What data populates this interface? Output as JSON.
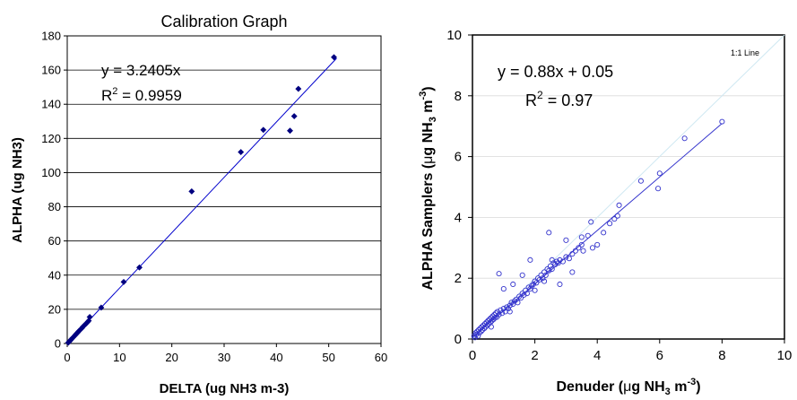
{
  "chart_data": [
    {
      "type": "scatter",
      "title": "Calibration Graph",
      "xlabel": "DELTA (ug NH3 m-3)",
      "ylabel": "ALPHA (ug NH3)",
      "xlim": [
        0,
        60
      ],
      "ylim": [
        0,
        180
      ],
      "xticks": [
        0,
        10,
        20,
        30,
        40,
        50,
        60
      ],
      "yticks": [
        0,
        20,
        40,
        60,
        80,
        100,
        120,
        140,
        160,
        180
      ],
      "marker_color": "#000080",
      "line_color": "#0000cc",
      "annotation": {
        "equation": "y = 3.2405x",
        "r2_prefix": "R",
        "r2_sup": "2",
        "r2_value": " = 0.9959"
      },
      "trendline": {
        "slope": 3.2405,
        "intercept": 0,
        "x_range": [
          0,
          51.5
        ]
      },
      "points": [
        [
          0.2,
          0.5
        ],
        [
          0.4,
          1.2
        ],
        [
          0.6,
          1.8
        ],
        [
          0.8,
          2.5
        ],
        [
          1.0,
          3.2
        ],
        [
          1.2,
          3.8
        ],
        [
          1.5,
          4.8
        ],
        [
          1.7,
          5.5
        ],
        [
          2.0,
          6.4
        ],
        [
          2.2,
          7.2
        ],
        [
          2.5,
          8.1
        ],
        [
          2.8,
          9.0
        ],
        [
          3.0,
          9.8
        ],
        [
          3.3,
          10.7
        ],
        [
          3.6,
          11.6
        ],
        [
          3.9,
          12.6
        ],
        [
          4.1,
          13.3
        ],
        [
          4.3,
          15.5
        ],
        [
          6.5,
          21.0
        ],
        [
          10.8,
          36.0
        ],
        [
          13.8,
          44.5
        ],
        [
          23.8,
          89.0
        ],
        [
          33.2,
          112.0
        ],
        [
          37.5,
          125.0
        ],
        [
          42.6,
          124.5
        ],
        [
          43.4,
          133.0
        ],
        [
          44.2,
          149.0
        ],
        [
          51.0,
          167.5
        ]
      ]
    },
    {
      "type": "scatter",
      "title": "",
      "xlabel_pre": "Denuder (",
      "xlabel_mu": "μ",
      "xlabel_mid": "g NH",
      "xlabel_sub": "3",
      "xlabel_mid2": " m",
      "xlabel_sup": "-3",
      "xlabel_post": ")",
      "ylabel_pre": "ALPHA Samplers (",
      "ylabel_mu": "μ",
      "ylabel_mid": "g NH",
      "ylabel_sub": "3",
      "ylabel_mid2": " m",
      "ylabel_sup": "-3",
      "ylabel_post": ")",
      "xlim": [
        0,
        10
      ],
      "ylim": [
        0,
        10
      ],
      "xticks": [
        0,
        2,
        4,
        6,
        8,
        10
      ],
      "yticks": [
        0,
        2,
        4,
        6,
        8,
        10
      ],
      "marker_color": "#3333cc",
      "line_color": "#3333cc",
      "reference_line_label": "1:1 Line",
      "annotation": {
        "equation": "y = 0.88x + 0.05",
        "r2_prefix": "R",
        "r2_sup": "2",
        "r2_value": " = 0.97"
      },
      "trendline": {
        "slope": 0.88,
        "intercept": 0.05,
        "x_range": [
          0,
          8
        ]
      },
      "points": [
        [
          0.05,
          0.1
        ],
        [
          0.08,
          0.05
        ],
        [
          0.1,
          0.2
        ],
        [
          0.12,
          0.15
        ],
        [
          0.15,
          0.25
        ],
        [
          0.18,
          0.1
        ],
        [
          0.2,
          0.3
        ],
        [
          0.22,
          0.2
        ],
        [
          0.25,
          0.35
        ],
        [
          0.28,
          0.25
        ],
        [
          0.3,
          0.4
        ],
        [
          0.32,
          0.3
        ],
        [
          0.35,
          0.45
        ],
        [
          0.38,
          0.35
        ],
        [
          0.4,
          0.5
        ],
        [
          0.42,
          0.4
        ],
        [
          0.45,
          0.55
        ],
        [
          0.48,
          0.45
        ],
        [
          0.5,
          0.6
        ],
        [
          0.52,
          0.5
        ],
        [
          0.55,
          0.65
        ],
        [
          0.58,
          0.55
        ],
        [
          0.6,
          0.7
        ],
        [
          0.62,
          0.6
        ],
        [
          0.65,
          0.75
        ],
        [
          0.68,
          0.65
        ],
        [
          0.7,
          0.8
        ],
        [
          0.72,
          0.7
        ],
        [
          0.75,
          0.85
        ],
        [
          0.78,
          0.72
        ],
        [
          0.8,
          0.9
        ],
        [
          0.85,
          0.8
        ],
        [
          0.9,
          0.95
        ],
        [
          0.95,
          0.85
        ],
        [
          1.0,
          1.0
        ],
        [
          1.05,
          0.9
        ],
        [
          1.1,
          1.05
        ],
        [
          1.15,
          1.0
        ],
        [
          1.2,
          1.1
        ],
        [
          1.25,
          1.2
        ],
        [
          1.3,
          1.15
        ],
        [
          1.35,
          1.25
        ],
        [
          1.4,
          1.3
        ],
        [
          1.45,
          1.2
        ],
        [
          1.5,
          1.4
        ],
        [
          1.55,
          1.35
        ],
        [
          1.6,
          1.5
        ],
        [
          1.65,
          1.45
        ],
        [
          1.7,
          1.6
        ],
        [
          1.75,
          1.5
        ],
        [
          1.8,
          1.7
        ],
        [
          1.85,
          1.65
        ],
        [
          1.9,
          1.75
        ],
        [
          1.95,
          1.8
        ],
        [
          2.0,
          1.9
        ],
        [
          2.05,
          1.85
        ],
        [
          2.1,
          2.0
        ],
        [
          2.15,
          1.95
        ],
        [
          2.2,
          2.1
        ],
        [
          2.25,
          2.0
        ],
        [
          2.3,
          2.2
        ],
        [
          2.35,
          2.1
        ],
        [
          2.4,
          2.3
        ],
        [
          2.45,
          2.25
        ],
        [
          2.5,
          2.4
        ],
        [
          2.55,
          2.3
        ],
        [
          2.6,
          2.5
        ],
        [
          2.65,
          2.45
        ],
        [
          2.7,
          2.55
        ],
        [
          2.75,
          2.5
        ],
        [
          2.8,
          2.6
        ],
        [
          2.9,
          2.55
        ],
        [
          3.0,
          2.7
        ],
        [
          3.1,
          2.65
        ],
        [
          3.2,
          2.8
        ],
        [
          3.3,
          2.9
        ],
        [
          3.4,
          3.0
        ],
        [
          3.5,
          3.1
        ],
        [
          0.85,
          2.15
        ],
        [
          1.0,
          1.65
        ],
        [
          1.3,
          1.8
        ],
        [
          1.6,
          2.1
        ],
        [
          1.85,
          2.6
        ],
        [
          2.45,
          3.5
        ],
        [
          2.55,
          2.6
        ],
        [
          2.8,
          1.8
        ],
        [
          3.0,
          3.25
        ],
        [
          3.2,
          2.2
        ],
        [
          3.5,
          3.35
        ],
        [
          3.55,
          2.9
        ],
        [
          3.7,
          3.4
        ],
        [
          3.8,
          3.85
        ],
        [
          3.85,
          3.0
        ],
        [
          4.0,
          3.1
        ],
        [
          4.2,
          3.5
        ],
        [
          4.4,
          3.8
        ],
        [
          4.55,
          3.95
        ],
        [
          4.65,
          4.05
        ],
        [
          4.7,
          4.4
        ],
        [
          5.4,
          5.2
        ],
        [
          5.95,
          4.95
        ],
        [
          6.0,
          5.45
        ],
        [
          6.8,
          6.6
        ],
        [
          8.0,
          7.15
        ],
        [
          2.0,
          1.6
        ],
        [
          2.3,
          1.9
        ],
        [
          1.2,
          0.9
        ],
        [
          0.6,
          0.4
        ]
      ]
    }
  ]
}
